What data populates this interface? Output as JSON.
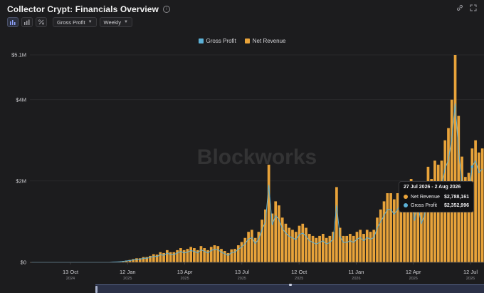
{
  "header": {
    "title": "Collector Crypt: Financials Overview",
    "info_icon": "info-circle-icon",
    "actions": [
      "link-icon",
      "expand-icon"
    ]
  },
  "toolbar": {
    "chart_type_buttons": [
      "bar-chart-icon",
      "stacked-bar-icon",
      "percent-icon"
    ],
    "metric_dropdown": "Gross Profit",
    "interval_dropdown": "Weekly"
  },
  "watermark": "Blockworks",
  "colors": {
    "gross_profit": "#5bb0d6",
    "net_revenue": "#e8a33a",
    "background": "#1c1c1e",
    "grid": "#333336"
  },
  "tooltip": {
    "title": "27 Jul 2026 - 2 Aug 2026",
    "rows": [
      {
        "name": "Net Revenue",
        "value": "$2,788,161"
      },
      {
        "name": "Gross Profit",
        "value": "$2,352,996"
      }
    ]
  },
  "chart_data": {
    "type": "bar",
    "title": "Collector Crypt: Financials Overview",
    "legend_position": "top-center",
    "grid": true,
    "y_axis": {
      "ticks": [
        "$0",
        "$2M",
        "$4M",
        "$5.1M"
      ],
      "tick_values": [
        0,
        2000000,
        4000000,
        5100000
      ],
      "ylim": [
        0,
        5100000
      ]
    },
    "x_axis": {
      "ticks": [
        {
          "label": "13 Oct",
          "sub": "2024"
        },
        {
          "label": "12 Jan",
          "sub": "2025"
        },
        {
          "label": "13 Apr",
          "sub": "2025"
        },
        {
          "label": "13 Jul",
          "sub": "2025"
        },
        {
          "label": "12 Oct",
          "sub": "2025"
        },
        {
          "label": "11 Jan",
          "sub": "2026"
        },
        {
          "label": "12 Apr",
          "sub": "2026"
        },
        {
          "label": "12 Jul",
          "sub": "2026"
        }
      ]
    },
    "series": [
      {
        "name": "Net Revenue",
        "type": "bar",
        "values": [
          0,
          0,
          0,
          0,
          0,
          0,
          0,
          0,
          0,
          0,
          0,
          0,
          0,
          0,
          0,
          0,
          0,
          0,
          0,
          0,
          0,
          0,
          0,
          0,
          10000,
          15000,
          20000,
          30000,
          45000,
          60000,
          80000,
          100000,
          100000,
          130000,
          130000,
          160000,
          200000,
          190000,
          250000,
          230000,
          300000,
          250000,
          250000,
          300000,
          350000,
          300000,
          330000,
          380000,
          350000,
          300000,
          400000,
          350000,
          300000,
          380000,
          420000,
          400000,
          330000,
          280000,
          230000,
          320000,
          330000,
          420000,
          500000,
          600000,
          750000,
          800000,
          600000,
          750000,
          1050000,
          1300000,
          2400000,
          1200000,
          1500000,
          1400000,
          1100000,
          950000,
          850000,
          800000,
          750000,
          900000,
          950000,
          850000,
          700000,
          650000,
          600000,
          650000,
          700000,
          600000,
          650000,
          750000,
          1850000,
          850000,
          650000,
          650000,
          700000,
          650000,
          750000,
          800000,
          700000,
          800000,
          750000,
          800000,
          1100000,
          1300000,
          1500000,
          1700000,
          1700000,
          1550000,
          1700000,
          1900000,
          1750000,
          1750000,
          2050000,
          1350000,
          1850000,
          1250000,
          1550000,
          2350000,
          2050000,
          2500000,
          2400000,
          2500000,
          3000000,
          3300000,
          4000000,
          5100000,
          3600000,
          2600000,
          2100000,
          2200000,
          2800000,
          3000000,
          2700000,
          2800000
        ],
        "color": "#e8a33a"
      },
      {
        "name": "Gross Profit",
        "type": "line",
        "values": [
          0,
          0,
          0,
          0,
          0,
          0,
          0,
          0,
          0,
          0,
          0,
          0,
          0,
          0,
          0,
          0,
          0,
          0,
          0,
          0,
          0,
          0,
          0,
          0,
          8000,
          12000,
          16000,
          25000,
          35000,
          45000,
          60000,
          75000,
          75000,
          100000,
          100000,
          120000,
          150000,
          140000,
          190000,
          170000,
          230000,
          190000,
          190000,
          230000,
          270000,
          230000,
          250000,
          290000,
          270000,
          230000,
          310000,
          270000,
          230000,
          290000,
          320000,
          310000,
          250000,
          210000,
          170000,
          240000,
          250000,
          320000,
          380000,
          460000,
          570000,
          610000,
          460000,
          570000,
          800000,
          1000000,
          1900000,
          920000,
          1150000,
          1050000,
          830000,
          720000,
          640000,
          600000,
          560000,
          680000,
          720000,
          640000,
          530000,
          490000,
          450000,
          490000,
          530000,
          450000,
          490000,
          570000,
          1400000,
          640000,
          490000,
          490000,
          530000,
          490000,
          570000,
          610000,
          530000,
          610000,
          570000,
          610000,
          840000,
          1000000,
          1150000,
          1300000,
          1300000,
          1180000,
          1300000,
          1450000,
          1330000,
          1330000,
          1560000,
          1030000,
          1410000,
          950000,
          1180000,
          1790000,
          1560000,
          1900000,
          1830000,
          1900000,
          2300000,
          2520000,
          3050000,
          3900000,
          2750000,
          1980000,
          1600000,
          1680000,
          2350000,
          2500000,
          2200000,
          2300000
        ],
        "color": "#5bb0d6"
      }
    ]
  }
}
